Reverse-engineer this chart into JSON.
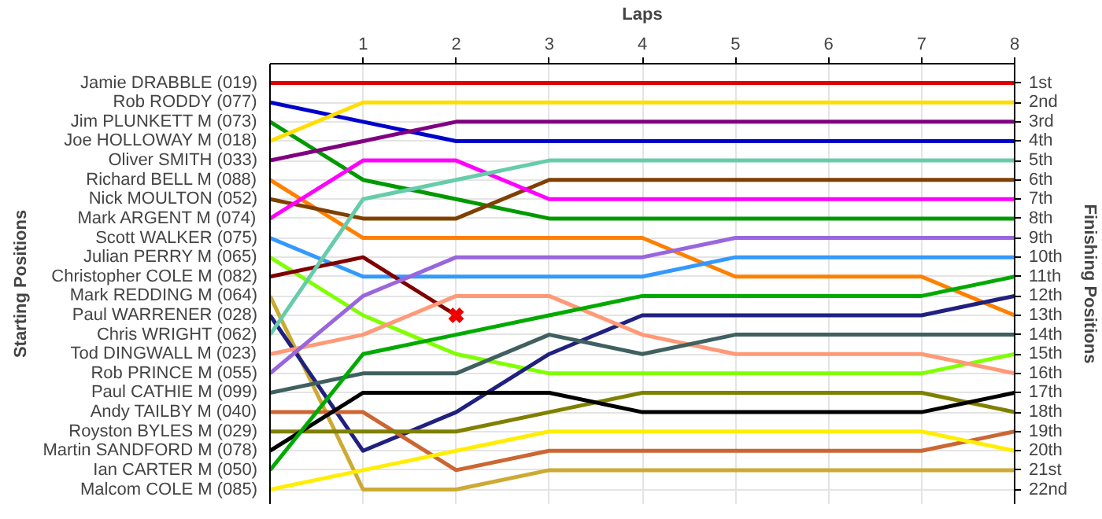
{
  "chart_data": {
    "type": "line",
    "xlabel": "Laps",
    "ylabel": "Finishing Positions",
    "annotations": [
      "Starting Positions"
    ],
    "legend": "left",
    "grid": true,
    "x": [
      0,
      1,
      2,
      3,
      4,
      5,
      6,
      7,
      8
    ],
    "xlim": [
      0,
      8
    ],
    "xticks": [
      1,
      2,
      3,
      4,
      5,
      6,
      7,
      8
    ],
    "ylim": [
      22.75,
      0
    ],
    "yticks": [
      {
        "value": 1,
        "label": "1st"
      },
      {
        "value": 2,
        "label": "2nd"
      },
      {
        "value": 3,
        "label": "3rd"
      },
      {
        "value": 4,
        "label": "4th"
      },
      {
        "value": 5,
        "label": "5th"
      },
      {
        "value": 6,
        "label": "6th"
      },
      {
        "value": 7,
        "label": "7th"
      },
      {
        "value": 8,
        "label": "8th"
      },
      {
        "value": 9,
        "label": "9th"
      },
      {
        "value": 10,
        "label": "10th"
      },
      {
        "value": 11,
        "label": "11th"
      },
      {
        "value": 12,
        "label": "12th"
      },
      {
        "value": 13,
        "label": "13th"
      },
      {
        "value": 14,
        "label": "14th"
      },
      {
        "value": 15,
        "label": "15th"
      },
      {
        "value": 16,
        "label": "16th"
      },
      {
        "value": 17,
        "label": "17th"
      },
      {
        "value": 18,
        "label": "18th"
      },
      {
        "value": 19,
        "label": "19th"
      },
      {
        "value": 20,
        "label": "20th"
      },
      {
        "value": 21,
        "label": "21st"
      },
      {
        "value": 22,
        "label": "22nd"
      }
    ],
    "series": [
      {
        "name": "Jamie DRABBLE (019)",
        "color": "#dd0000",
        "values": [
          1,
          1,
          1,
          1,
          1,
          1,
          1,
          1,
          1
        ]
      },
      {
        "name": "Rob RODDY (077)",
        "color": "#0000cc",
        "values": [
          2,
          3,
          4,
          4,
          4,
          4,
          4,
          4,
          4
        ]
      },
      {
        "name": "Jim PLUNKETT M (073)",
        "color": "#009900",
        "values": [
          3,
          6,
          7,
          8,
          8,
          8,
          8,
          8,
          8
        ]
      },
      {
        "name": "Joe HOLLOWAY M (018)",
        "color": "#ffdd00",
        "values": [
          4,
          2,
          2,
          2,
          2,
          2,
          2,
          2,
          2
        ]
      },
      {
        "name": "Oliver SMITH (033)",
        "color": "#800080",
        "values": [
          5,
          4,
          3,
          3,
          3,
          3,
          3,
          3,
          3
        ]
      },
      {
        "name": "Richard BELL M (088)",
        "color": "#ff8000",
        "values": [
          6,
          9,
          9,
          9,
          9,
          11,
          11,
          11,
          13
        ]
      },
      {
        "name": "Nick MOULTON (052)",
        "color": "#804000",
        "values": [
          7,
          8,
          8,
          6,
          6,
          6,
          6,
          6,
          6
        ]
      },
      {
        "name": "Mark ARGENT M (074)",
        "color": "#ff00ff",
        "values": [
          8,
          5,
          5,
          7,
          7,
          7,
          7,
          7,
          7
        ]
      },
      {
        "name": "Scott WALKER (075)",
        "color": "#3399ff",
        "values": [
          9,
          11,
          11,
          11,
          11,
          10,
          10,
          10,
          10
        ]
      },
      {
        "name": "Julian PERRY M (065)",
        "color": "#80ff00",
        "values": [
          10,
          13,
          15,
          16,
          16,
          16,
          16,
          16,
          15
        ]
      },
      {
        "name": "Christopher COLE M (082)",
        "color": "#800000",
        "values": [
          11,
          10,
          13,
          null,
          null,
          null,
          null,
          null,
          null
        ]
      },
      {
        "name": "Mark REDDING M (064)",
        "color": "#ccaa33",
        "values": [
          12,
          22,
          22,
          21,
          21,
          21,
          21,
          21,
          21
        ]
      },
      {
        "name": "Paul WARRENER (028)",
        "color": "#202080",
        "values": [
          13,
          20,
          18,
          15,
          13,
          13,
          13,
          13,
          12
        ]
      },
      {
        "name": "Chris WRIGHT (062)",
        "color": "#66ccaa",
        "values": [
          14,
          7,
          6,
          5,
          5,
          5,
          5,
          5,
          5
        ]
      },
      {
        "name": "Tod DINGWALL M (023)",
        "color": "#ff9977",
        "values": [
          15,
          14,
          12,
          12,
          14,
          15,
          15,
          15,
          16
        ]
      },
      {
        "name": "Rob PRINCE M (055)",
        "color": "#9966dd",
        "values": [
          16,
          12,
          10,
          10,
          10,
          9,
          9,
          9,
          9
        ]
      },
      {
        "name": "Paul CATHIE M (099)",
        "color": "#406060",
        "values": [
          17,
          16,
          16,
          14,
          15,
          14,
          14,
          14,
          14
        ]
      },
      {
        "name": "Andy TAILBY M (040)",
        "color": "#cc6633",
        "values": [
          18,
          18,
          21,
          20,
          20,
          20,
          20,
          20,
          19
        ]
      },
      {
        "name": "Royston BYLES M (029)",
        "color": "#808000",
        "values": [
          19,
          19,
          19,
          18,
          17,
          17,
          17,
          17,
          18
        ]
      },
      {
        "name": "Martin SANDFORD M (078)",
        "color": "#000000",
        "values": [
          20,
          17,
          17,
          17,
          18,
          18,
          18,
          18,
          17
        ]
      },
      {
        "name": "Ian CARTER M (050)",
        "color": "#00aa00",
        "values": [
          21,
          15,
          14,
          13,
          12,
          12,
          12,
          12,
          11
        ]
      },
      {
        "name": "Malcom COLE M (085)",
        "color": "#ffee00",
        "values": [
          22,
          21,
          20,
          19,
          19,
          19,
          19,
          19,
          20
        ]
      },
      {
        "type": "scatter",
        "marker": "cross",
        "color": "#ee0000",
        "x": [
          2
        ],
        "values": [
          13
        ]
      }
    ]
  }
}
